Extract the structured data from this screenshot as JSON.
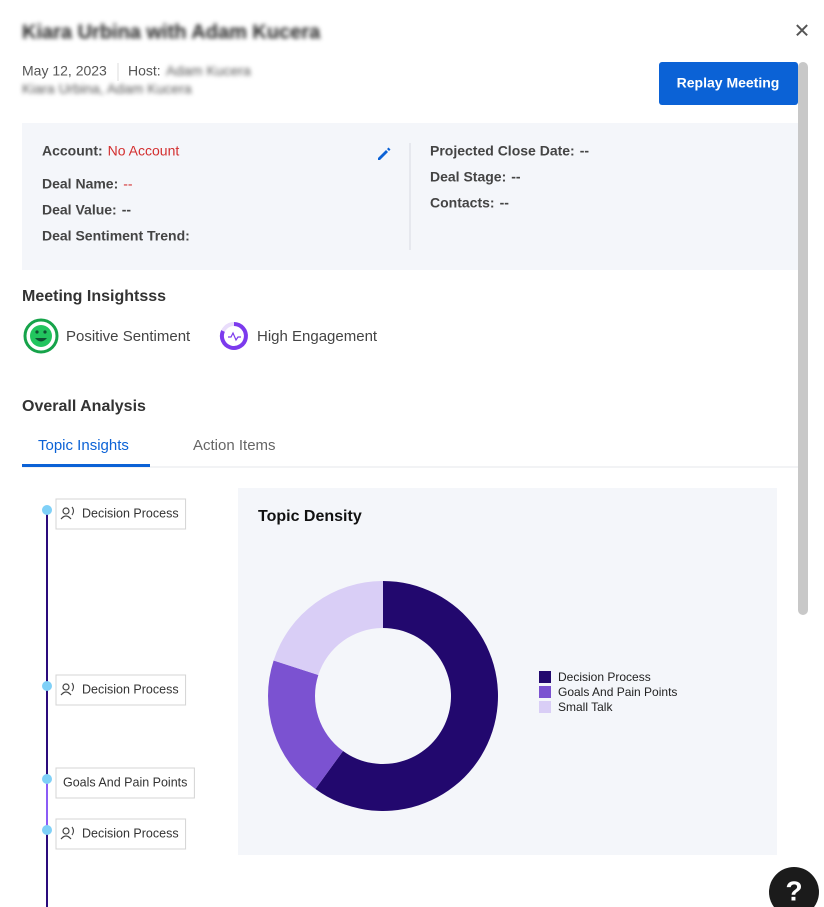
{
  "header": {
    "title": "Kiara Urbina with Adam Kucera",
    "date": "May 12, 2023",
    "host_label": "Host:",
    "host": "Adam Kucera",
    "participants": "Kiara Urbina, Adam Kucera",
    "replay_button": "Replay Meeting",
    "close": "✕"
  },
  "deal": {
    "left": [
      {
        "label": "Account:",
        "value": "No Account"
      },
      {
        "label": "Deal Name:",
        "value": "--"
      },
      {
        "label": "Deal Value:",
        "value": "--"
      },
      {
        "label": "Deal Sentiment Trend:"
      }
    ],
    "right": [
      {
        "label": "Projected Close Date:",
        "value": "--"
      },
      {
        "label": "Deal Stage:",
        "value": "--"
      },
      {
        "label": "Contacts:",
        "value": "--"
      }
    ]
  },
  "insights": {
    "title": "Meeting Insightsss",
    "items": [
      "Positive Sentiment",
      "High Engagement"
    ]
  },
  "analysis": {
    "title": "Overall Analysis",
    "tabs": [
      "Topic Insights",
      "Action Items"
    ]
  },
  "timeline": [
    "Decision Process",
    "Decision Process",
    "Goals And Pain Points",
    "Decision Process"
  ],
  "chart_data": {
    "type": "pie",
    "title": "Topic Density",
    "categories": [
      "Decision Process",
      "Goals And Pain Points",
      "Small Talk"
    ],
    "values": [
      60,
      20,
      20
    ],
    "colors": [
      "#22086e",
      "#7b52d1",
      "#d9cef6"
    ]
  },
  "help": "?"
}
